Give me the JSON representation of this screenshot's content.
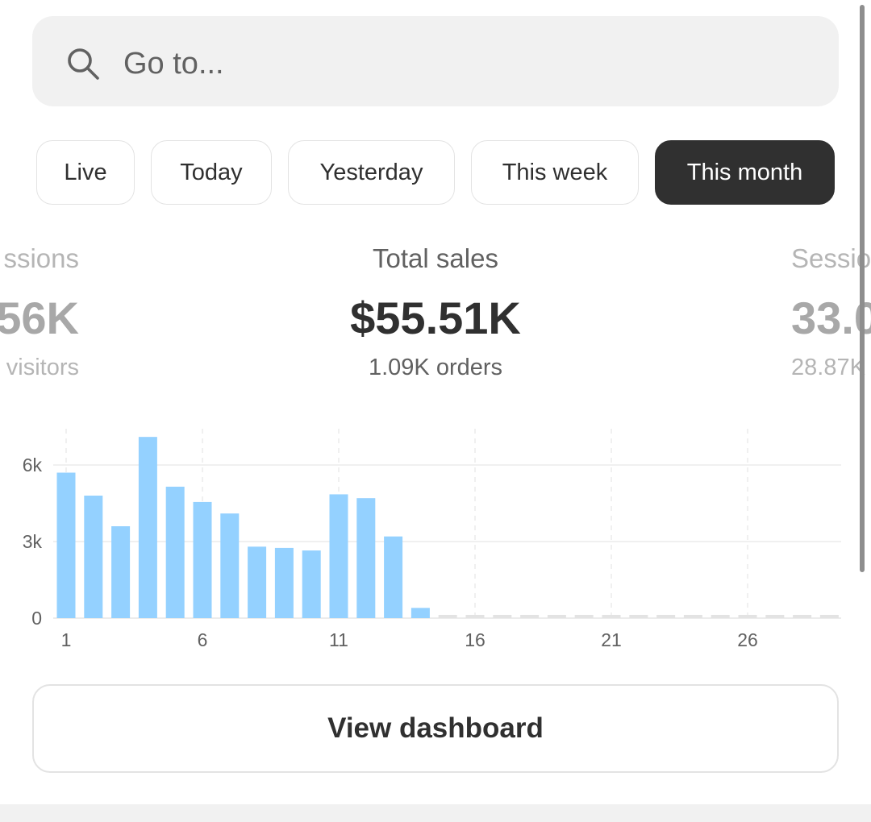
{
  "search": {
    "placeholder": "Go to...",
    "icon": "search-icon"
  },
  "periods": [
    {
      "label": "Live",
      "active": false
    },
    {
      "label": "Today",
      "active": false
    },
    {
      "label": "Yesterday",
      "active": false
    },
    {
      "label": "This week",
      "active": false
    },
    {
      "label": "This month",
      "active": true
    }
  ],
  "metrics": {
    "left": {
      "label": "ssions",
      "value": "56K",
      "sub": "visitors"
    },
    "center": {
      "label": "Total sales",
      "value": "$55.51K",
      "sub": "1.09K orders"
    },
    "right": {
      "label": "Sessio",
      "value": "33.0",
      "sub": "28.87K"
    }
  },
  "chart_data": {
    "type": "bar",
    "x": [
      1,
      2,
      3,
      4,
      5,
      6,
      7,
      8,
      9,
      10,
      11,
      12,
      13,
      14,
      15,
      16,
      17,
      18,
      19,
      20,
      21,
      22,
      23,
      24,
      25,
      26,
      27,
      28,
      29
    ],
    "values": [
      5700,
      4800,
      3600,
      7100,
      5150,
      4550,
      4100,
      2800,
      2750,
      2650,
      4850,
      4700,
      3200,
      400,
      0,
      0,
      0,
      0,
      0,
      0,
      0,
      0,
      0,
      0,
      0,
      0,
      0,
      0,
      0
    ],
    "x_ticks": [
      1,
      6,
      11,
      16,
      21,
      26
    ],
    "x_tick_labels": [
      "1",
      "6",
      "11",
      "16",
      "21",
      "26"
    ],
    "y_ticks": [
      0,
      3000,
      6000
    ],
    "y_tick_labels": [
      "0",
      "3k",
      "6k"
    ],
    "ylim": [
      0,
      7800
    ],
    "title": "",
    "xlabel": "",
    "ylabel": "",
    "bar_color": "#94d1ff",
    "empty_color": "#e3e3e3",
    "grid": true
  },
  "dashboard_button": {
    "label": "View dashboard"
  },
  "colors": {
    "active_chip_bg": "#303030",
    "active_chip_text": "#ffffff",
    "bar": "#94d1ff"
  }
}
